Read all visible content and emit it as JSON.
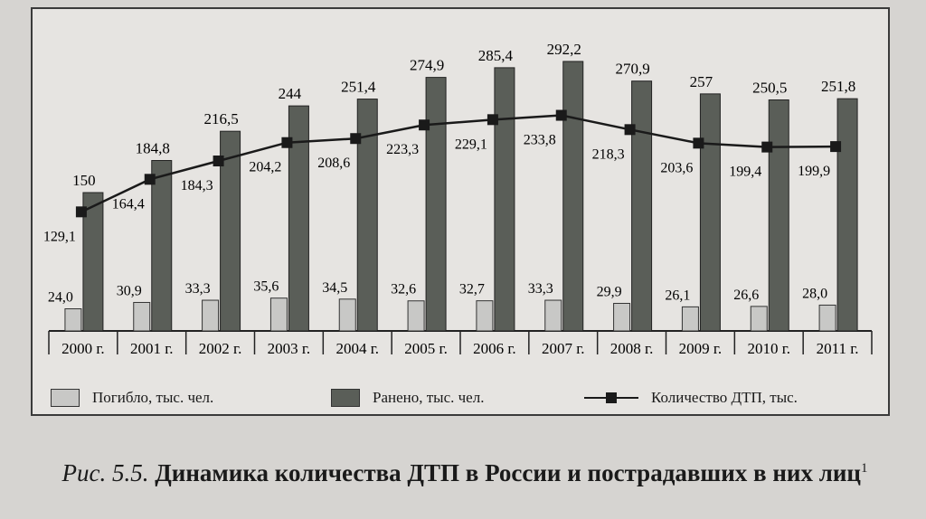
{
  "chart_data": {
    "type": "bar",
    "categories": [
      "2000 г.",
      "2001 г.",
      "2002 г.",
      "2003 г.",
      "2004 г.",
      "2005 г.",
      "2006 г.",
      "2007 г.",
      "2008 г.",
      "2009 г.",
      "2010 г.",
      "2011 г."
    ],
    "series": [
      {
        "name": "Погибло, тыс. чел.",
        "type": "bar",
        "values": [
          24.0,
          30.9,
          33.3,
          35.6,
          34.5,
          32.6,
          32.7,
          33.3,
          29.9,
          26.1,
          26.6,
          28.0
        ],
        "labels": [
          "24,0",
          "30,9",
          "33,3",
          "35,6",
          "34,5",
          "32,6",
          "32,7",
          "33,3",
          "29,9",
          "26,1",
          "26,6",
          "28,0"
        ],
        "color": "#c8c8c6"
      },
      {
        "name": "Ранено, тыс. чел.",
        "type": "bar",
        "values": [
          150,
          184.8,
          216.5,
          244,
          251.4,
          274.9,
          285.4,
          292.2,
          270.9,
          257,
          250.5,
          251.8
        ],
        "labels": [
          "150",
          "184,8",
          "216,5",
          "244",
          "251,4",
          "274,9",
          "285,4",
          "292,2",
          "270,9",
          "257",
          "250,5",
          "251,8"
        ],
        "color": "#5a5e58"
      },
      {
        "name": "Количество ДТП, тыс.",
        "type": "line",
        "values": [
          129.1,
          164.4,
          184.3,
          204.2,
          208.6,
          223.3,
          229.1,
          233.8,
          218.3,
          203.6,
          199.4,
          199.9
        ],
        "labels": [
          "129,1",
          "164,4",
          "184,3",
          "204,2",
          "208,6",
          "223,3",
          "229,1",
          "233,8",
          "218,3",
          "203,6",
          "199,4",
          "199,9"
        ],
        "color": "#1a1a1a"
      }
    ],
    "ylim": [
      0,
      300
    ],
    "grid": false,
    "legend": "bottom",
    "title": ""
  },
  "caption": {
    "figure_label": "Рис. 5.5.",
    "title": "Динамика количества ДТП в России и пострадавших в них лиц",
    "footnote_mark": "1"
  }
}
